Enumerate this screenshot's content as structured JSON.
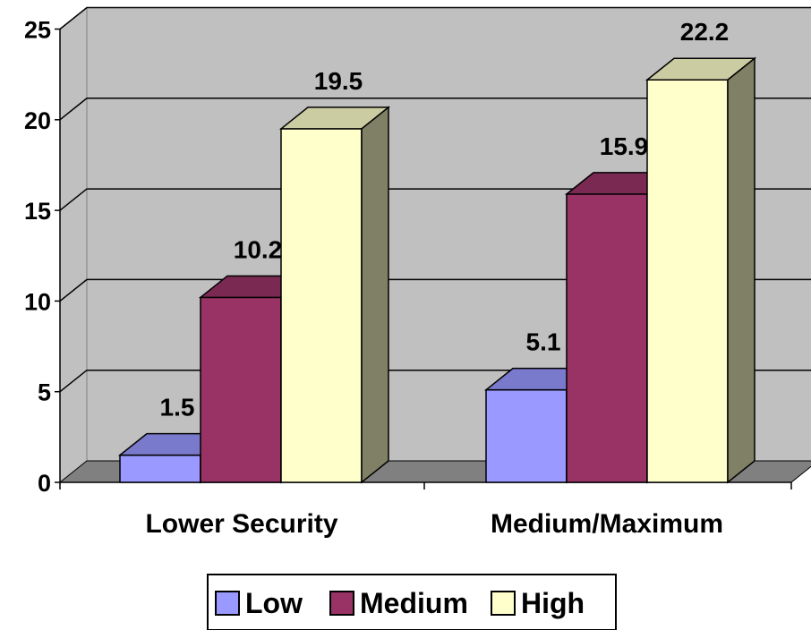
{
  "chart_data": {
    "type": "bar",
    "categories": [
      "Lower Security",
      "Medium/Maximum"
    ],
    "series": [
      {
        "name": "Low",
        "values": [
          1.5,
          5.1
        ],
        "color": "#9999ff"
      },
      {
        "name": "Medium",
        "values": [
          10.2,
          15.9
        ],
        "color": "#993366"
      },
      {
        "name": "High",
        "values": [
          19.5,
          22.2
        ],
        "color": "#ffffcc"
      }
    ],
    "ylim": [
      0,
      25
    ],
    "yticks": [
      "0",
      "5",
      "10",
      "15",
      "20",
      "25"
    ],
    "grid": true,
    "legend_position": "bottom",
    "style": "3d-column",
    "wall_color": "#c0c0c0",
    "floor_color": "#808080"
  }
}
